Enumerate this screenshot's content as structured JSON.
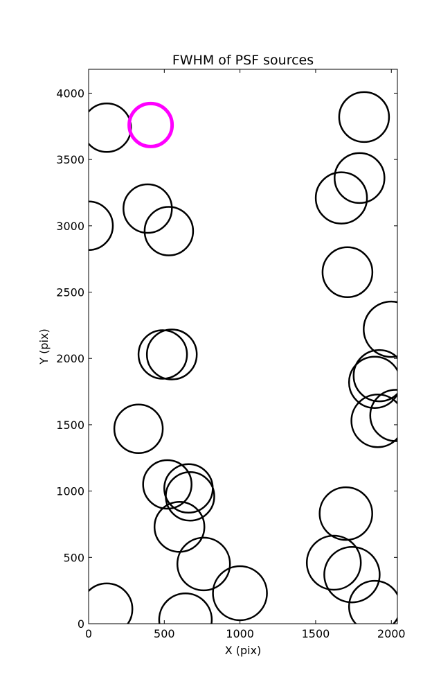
{
  "chart_data": {
    "type": "scatter",
    "title": "FWHM of PSF sources",
    "xlabel": "X (pix)",
    "ylabel": "Y (pix)",
    "xlim": [
      0,
      2040
    ],
    "ylim": [
      0,
      4180
    ],
    "xticks": [
      0,
      500,
      1000,
      1500,
      2000
    ],
    "yticks": [
      0,
      500,
      1000,
      1500,
      2000,
      2500,
      3000,
      3500,
      4000
    ],
    "grid": false,
    "legend": "none",
    "marker": "circle",
    "default_color": "#000000",
    "highlight_color": "#ff00ff",
    "points": [
      {
        "x": 120,
        "y": 3740,
        "r": 35
      },
      {
        "x": 410,
        "y": 3760,
        "r": 31,
        "highlight": true
      },
      {
        "x": 390,
        "y": 3130,
        "r": 35
      },
      {
        "x": 530,
        "y": 2960,
        "r": 35
      },
      {
        "x": 0,
        "y": 3000,
        "r": 35
      },
      {
        "x": 490,
        "y": 2030,
        "r": 35
      },
      {
        "x": 550,
        "y": 2030,
        "r": 36
      },
      {
        "x": 330,
        "y": 1470,
        "r": 35
      },
      {
        "x": 520,
        "y": 1050,
        "r": 35
      },
      {
        "x": 660,
        "y": 1020,
        "r": 35
      },
      {
        "x": 670,
        "y": 960,
        "r": 35
      },
      {
        "x": 600,
        "y": 730,
        "r": 36
      },
      {
        "x": 760,
        "y": 450,
        "r": 38
      },
      {
        "x": 1000,
        "y": 230,
        "r": 39
      },
      {
        "x": 640,
        "y": 30,
        "r": 38
      },
      {
        "x": 120,
        "y": 110,
        "r": 37
      },
      {
        "x": 1820,
        "y": 3820,
        "r": 36
      },
      {
        "x": 1790,
        "y": 3360,
        "r": 36
      },
      {
        "x": 1670,
        "y": 3210,
        "r": 37
      },
      {
        "x": 1710,
        "y": 2650,
        "r": 36
      },
      {
        "x": 2000,
        "y": 2220,
        "r": 40
      },
      {
        "x": 1920,
        "y": 1870,
        "r": 37
      },
      {
        "x": 1890,
        "y": 1820,
        "r": 37
      },
      {
        "x": 1910,
        "y": 1530,
        "r": 38
      },
      {
        "x": 2030,
        "y": 1570,
        "r": 37
      },
      {
        "x": 1700,
        "y": 830,
        "r": 38
      },
      {
        "x": 1620,
        "y": 460,
        "r": 39
      },
      {
        "x": 1740,
        "y": 370,
        "r": 40
      },
      {
        "x": 1890,
        "y": 130,
        "r": 37
      }
    ]
  }
}
